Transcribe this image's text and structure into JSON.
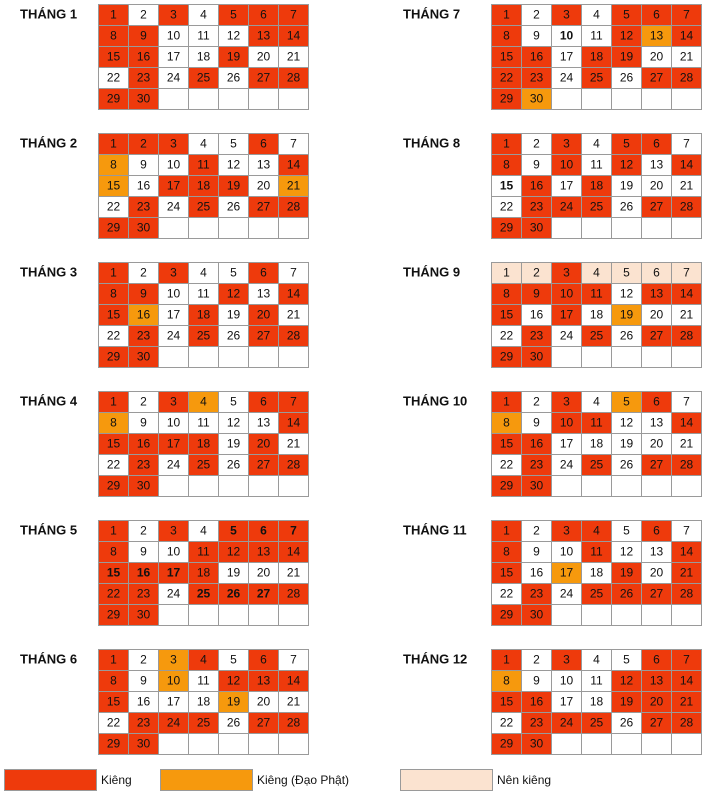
{
  "palette": {
    "R": "#ee3a0c",
    "O": "#f6990d",
    "P": "#fbe3d0",
    "W": "#ffffff"
  },
  "months": [
    {
      "label": "THÁNG 1",
      "days": [
        1,
        2,
        3,
        4,
        5,
        6,
        7,
        8,
        9,
        10,
        11,
        12,
        13,
        14,
        15,
        16,
        17,
        18,
        19,
        20,
        21,
        22,
        23,
        24,
        25,
        26,
        27,
        28,
        29,
        30
      ],
      "status": "RWRWRRRRRWWWRRRRWWRWWWRWRWRRRR",
      "bold": "000000000000000000000000000000"
    },
    {
      "label": "THÁNG 2",
      "days": [
        1,
        2,
        3,
        4,
        5,
        6,
        7,
        8,
        9,
        10,
        11,
        12,
        13,
        14,
        15,
        16,
        17,
        18,
        19,
        20,
        21,
        22,
        23,
        24,
        25,
        26,
        27,
        28,
        29,
        30
      ],
      "status": "RRRWWRWOWWRWWROWRRRWOWRWRWRRRR",
      "bold": "000000000000000000000000000000"
    },
    {
      "label": "THÁNG 3",
      "days": [
        1,
        2,
        3,
        4,
        5,
        6,
        7,
        8,
        9,
        10,
        11,
        12,
        13,
        14,
        15,
        16,
        17,
        18,
        19,
        20,
        21,
        22,
        23,
        24,
        25,
        26,
        27,
        28,
        29,
        30
      ],
      "status": "RWRWWRWRRWWRWRROWRWRWWRWRWRRRR",
      "bold": "000000000000000000000000000000"
    },
    {
      "label": "THÁNG 4",
      "days": [
        1,
        2,
        3,
        4,
        5,
        6,
        7,
        8,
        9,
        10,
        11,
        12,
        13,
        14,
        15,
        16,
        17,
        18,
        19,
        20,
        21,
        22,
        23,
        24,
        25,
        26,
        27,
        28,
        29,
        30
      ],
      "status": "RWROWRROWWWWWRRRRRWRWWRWRWRRRR",
      "bold": "000000000000000000000000000000"
    },
    {
      "label": "THÁNG 5",
      "days": [
        1,
        2,
        3,
        4,
        5,
        6,
        7,
        8,
        9,
        10,
        11,
        12,
        13,
        14,
        15,
        16,
        17,
        18,
        19,
        20,
        21,
        22,
        23,
        24,
        25,
        26,
        27,
        28,
        29,
        30
      ],
      "status": "RWRWRRRRWWRRRRRRRRWWWRRWRRRRRR",
      "bold": "000011100000001110000000111000"
    },
    {
      "label": "THÁNG 6",
      "days": [
        1,
        2,
        3,
        4,
        5,
        6,
        7,
        8,
        9,
        10,
        11,
        12,
        13,
        14,
        15,
        16,
        17,
        18,
        19,
        20,
        21,
        22,
        23,
        24,
        25,
        26,
        27,
        28,
        29,
        30
      ],
      "status": "RWORWRWRWOWRRRRWWWOWWWRRRWRRRR",
      "bold": "000000000000000000000000000000"
    },
    {
      "label": "THÁNG 7",
      "days": [
        1,
        2,
        3,
        4,
        5,
        6,
        7,
        8,
        9,
        10,
        11,
        12,
        13,
        14,
        15,
        16,
        17,
        18,
        19,
        20,
        21,
        22,
        23,
        24,
        25,
        26,
        27,
        28,
        29,
        30
      ],
      "status": "RWRWRRRRWWWRORRRWRRWWRRWRWRRRO",
      "bold": "000000000100000000000000000000"
    },
    {
      "label": "THÁNG 8",
      "days": [
        1,
        2,
        3,
        4,
        5,
        6,
        7,
        8,
        9,
        10,
        11,
        12,
        13,
        14,
        15,
        16,
        17,
        18,
        19,
        20,
        21,
        22,
        23,
        24,
        25,
        26,
        27,
        28,
        29,
        30
      ],
      "status": "RWRWRRWRWRWRWRWRWRWWWWRRRWRRRR",
      "bold": "000000000000001000000000000000"
    },
    {
      "label": "THÁNG 9",
      "days": [
        1,
        2,
        3,
        4,
        5,
        6,
        7,
        8,
        9,
        10,
        11,
        12,
        13,
        14,
        15,
        16,
        17,
        18,
        19,
        20,
        21,
        22,
        23,
        24,
        25,
        26,
        27,
        28,
        29,
        30
      ],
      "status": "PPRPPPPRRRRWRRRWRWOWWWRWRWRRRR",
      "bold": "000000000000000000000000000000"
    },
    {
      "label": "THÁNG 10",
      "days": [
        1,
        2,
        3,
        4,
        5,
        6,
        7,
        8,
        9,
        10,
        11,
        12,
        13,
        14,
        15,
        16,
        17,
        18,
        19,
        20,
        21,
        22,
        23,
        24,
        25,
        26,
        27,
        28,
        29,
        30
      ],
      "status": "RWRWORWOWRRWWRRRWWWWWWRWRWRRRR",
      "bold": "000000000000000000000000000000"
    },
    {
      "label": "THÁNG 11",
      "days": [
        1,
        2,
        3,
        4,
        5,
        6,
        7,
        8,
        9,
        10,
        11,
        12,
        13,
        14,
        15,
        16,
        17,
        18,
        19,
        20,
        21,
        22,
        23,
        24,
        25,
        26,
        27,
        28,
        29,
        30
      ],
      "status": "RWRRWRWRWWRWWRRWOWRWRWRWRRRRRR",
      "bold": "000000000000000000000000000000"
    },
    {
      "label": "THÁNG 12",
      "days": [
        1,
        2,
        3,
        4,
        5,
        6,
        7,
        8,
        9,
        10,
        11,
        12,
        13,
        14,
        15,
        16,
        17,
        18,
        19,
        20,
        21,
        22,
        23,
        24,
        25,
        26,
        27,
        28,
        29,
        30
      ],
      "status": "RWRWWRROWWWRRRRRWWRRRWRRRWRRRR",
      "bold": "000000000000000000000000000000"
    }
  ],
  "legend": [
    {
      "label": "Kiêng",
      "code": "R"
    },
    {
      "label": "Kiêng (Đạo Phật)",
      "code": "O"
    },
    {
      "label": "Nên kiêng",
      "code": "P"
    }
  ]
}
